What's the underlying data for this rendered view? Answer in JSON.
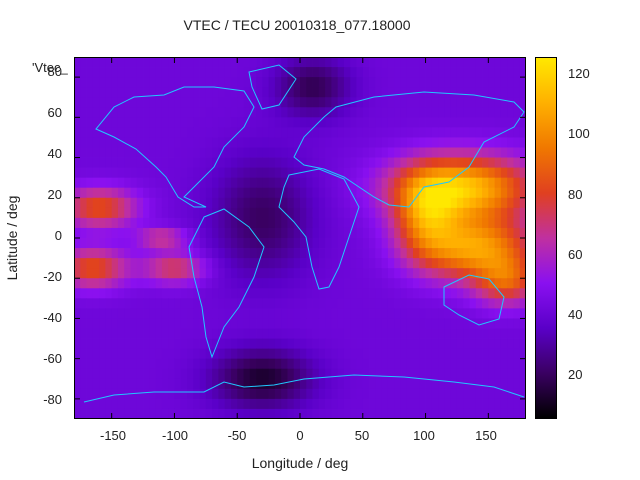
{
  "title": "VTEC / TECU 20010318_077.18000",
  "legend_key": "'Vtec_",
  "chart_data": {
    "type": "heatmap",
    "title": "VTEC / TECU 20010318_077.18000",
    "xlabel": "Longitude / deg",
    "ylabel": "Latitude / deg",
    "xlim": [
      -180,
      180
    ],
    "ylim": [
      -90,
      90
    ],
    "x_ticks": [
      "-150",
      "-100",
      "-50",
      "0",
      "50",
      "100",
      "150"
    ],
    "y_ticks": [
      "80",
      "60",
      "40",
      "20",
      "0",
      "-20",
      "-40",
      "-60",
      "-80"
    ],
    "colorbar": {
      "range": [
        5,
        127
      ],
      "ticks": [
        "120",
        "100",
        "80",
        "60",
        "40",
        "20"
      ],
      "palette": [
        "#000000",
        "#3a0062",
        "#5a00c8",
        "#8a10f0",
        "#c030a0",
        "#e04020",
        "#f07800",
        "#ffb000",
        "#ffe800"
      ]
    },
    "background_level": 42,
    "features": [
      {
        "lon": 130,
        "lat": 25,
        "rlon": 55,
        "rlat": 16,
        "peak": 115
      },
      {
        "lon": 140,
        "lat": -5,
        "rlon": 45,
        "rlat": 16,
        "peak": 105
      },
      {
        "lon": 100,
        "lat": 10,
        "rlon": 25,
        "rlat": 20,
        "peak": 85
      },
      {
        "lon": 165,
        "lat": -22,
        "rlon": 25,
        "rlat": 12,
        "peak": 80
      },
      {
        "lon": -160,
        "lat": 15,
        "rlon": 30,
        "rlat": 10,
        "peak": 85
      },
      {
        "lon": -165,
        "lat": -15,
        "rlon": 28,
        "rlat": 10,
        "peak": 85
      },
      {
        "lon": -100,
        "lat": -15,
        "rlon": 25,
        "rlat": 8,
        "peak": 75
      },
      {
        "lon": -110,
        "lat": 0,
        "rlon": 20,
        "rlat": 5,
        "peak": 70
      },
      {
        "lon": -30,
        "lat": 10,
        "rlon": 40,
        "rlat": 30,
        "peak": 20
      },
      {
        "lon": -30,
        "lat": -70,
        "rlon": 40,
        "rlat": 15,
        "peak": 12
      },
      {
        "lon": 10,
        "lat": 75,
        "rlon": 30,
        "rlat": 15,
        "peak": 18
      }
    ]
  }
}
